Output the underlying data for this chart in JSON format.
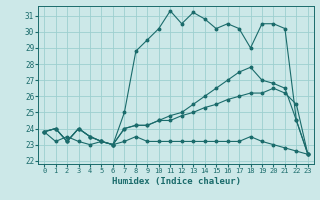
{
  "xlabel": "Humidex (Indice chaleur)",
  "bg_color": "#cce8e8",
  "grid_color": "#9dcfcf",
  "line_color": "#1a6b6b",
  "xlim": [
    -0.5,
    23.5
  ],
  "ylim": [
    21.8,
    31.6
  ],
  "xticks": [
    0,
    1,
    2,
    3,
    4,
    5,
    6,
    7,
    8,
    9,
    10,
    11,
    12,
    13,
    14,
    15,
    16,
    17,
    18,
    19,
    20,
    21,
    22,
    23
  ],
  "yticks": [
    22,
    23,
    24,
    25,
    26,
    27,
    28,
    29,
    30,
    31
  ],
  "series": [
    [
      23.8,
      24.0,
      23.2,
      24.0,
      23.5,
      23.2,
      23.0,
      25.0,
      28.8,
      29.5,
      30.2,
      31.3,
      30.5,
      31.2,
      30.8,
      30.2,
      30.5,
      30.2,
      29.0,
      30.5,
      30.5,
      30.2,
      24.5,
      22.4
    ],
    [
      23.8,
      24.0,
      23.2,
      24.0,
      23.5,
      23.2,
      23.0,
      24.0,
      24.2,
      24.2,
      24.5,
      24.8,
      25.0,
      25.5,
      26.0,
      26.5,
      27.0,
      27.5,
      27.8,
      27.0,
      26.8,
      26.5,
      24.5,
      22.4
    ],
    [
      23.8,
      24.0,
      23.2,
      24.0,
      23.5,
      23.2,
      23.0,
      24.0,
      24.2,
      24.2,
      24.5,
      24.5,
      24.8,
      25.0,
      25.3,
      25.5,
      25.8,
      26.0,
      26.2,
      26.2,
      26.5,
      26.2,
      25.5,
      22.4
    ],
    [
      23.8,
      23.2,
      23.5,
      23.2,
      23.0,
      23.2,
      23.0,
      23.2,
      23.5,
      23.2,
      23.2,
      23.2,
      23.2,
      23.2,
      23.2,
      23.2,
      23.2,
      23.2,
      23.5,
      23.2,
      23.0,
      22.8,
      22.6,
      22.4
    ]
  ]
}
